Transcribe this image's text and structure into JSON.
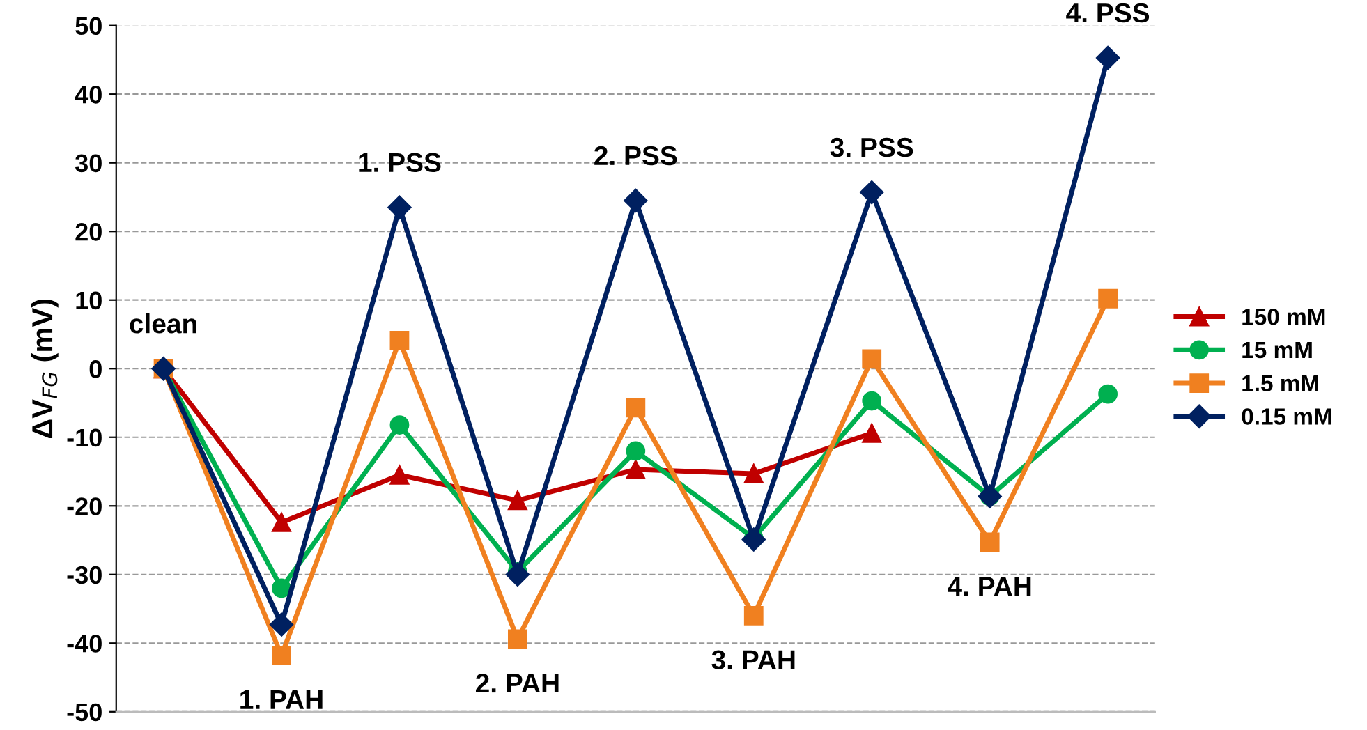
{
  "chart_data": {
    "type": "line",
    "ylabel": "ΔV$_{FG}$ (mV)",
    "categories": [
      null,
      null,
      null,
      null,
      null,
      null,
      null,
      null,
      null
    ],
    "series": [
      {
        "name": "150 mM",
        "color": "#c00000",
        "marker": "triangle",
        "values": [
          0,
          -22.4,
          -15.5,
          -19.2,
          -14.7,
          -15.3,
          -9.4,
          null,
          null
        ]
      },
      {
        "name": "15 mM",
        "color": "#00b050",
        "marker": "circle",
        "values": [
          0,
          -32,
          -8.2,
          -29.6,
          -12,
          -24.7,
          -4.7,
          -18.6,
          -3.7
        ]
      },
      {
        "name": "1.5 mM",
        "color": "#f08020",
        "marker": "square",
        "values": [
          0,
          -41.8,
          4.1,
          -39.4,
          -5.7,
          -36,
          1.4,
          -25.3,
          10.2
        ]
      },
      {
        "name": "0.15 mM",
        "color": "#002060",
        "marker": "diamond",
        "values": [
          0,
          -37.3,
          23.5,
          -30,
          24.5,
          -24.9,
          25.7,
          -18.6,
          45.3
        ]
      }
    ],
    "annotations": [
      "clean",
      "1. PAH",
      "1. PSS",
      "2. PAH",
      "2. PSS",
      "3. PAH",
      "3. PSS",
      "4. PAH",
      "4. PSS"
    ],
    "ylim": [
      -50,
      50
    ],
    "yticks": [
      -50,
      -40,
      -30,
      -20,
      -10,
      0,
      10,
      20,
      30,
      40,
      50
    ],
    "grid": "y",
    "legend": "right",
    "line_style": "solid"
  }
}
